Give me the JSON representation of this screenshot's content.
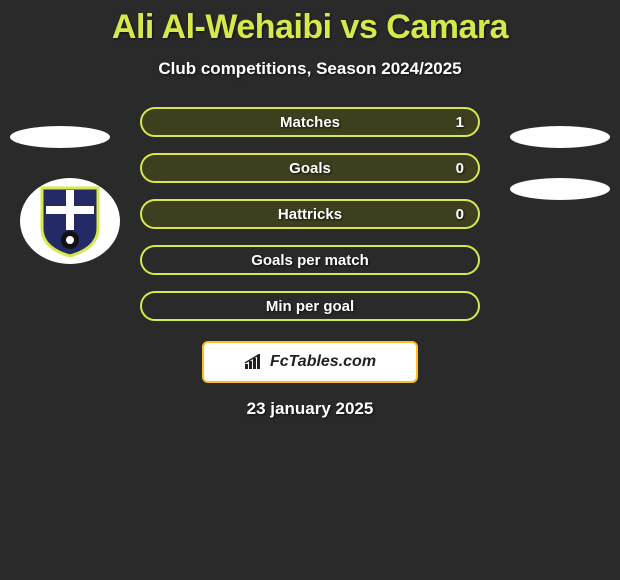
{
  "title": "Ali Al-Wehaibi vs Camara",
  "subtitle": "Club competitions, Season 2024/2025",
  "date": "23 january 2025",
  "title_color": "#d7e84a",
  "background_color": "#2a2a2a",
  "badge": {
    "text": "FcTables.com",
    "border_color": "#fbbf24",
    "bg_color": "#ffffff",
    "text_color": "#222222"
  },
  "rows": [
    {
      "label": "Matches",
      "value_right": "1",
      "border_color": "#d7e84a",
      "bg_color": "#3d3f1e"
    },
    {
      "label": "Goals",
      "value_right": "0",
      "border_color": "#d7e84a",
      "bg_color": "#3d3f1e"
    },
    {
      "label": "Hattricks",
      "value_right": "0",
      "border_color": "#d7e84a",
      "bg_color": "#3d3f1e"
    },
    {
      "label": "Goals per match",
      "value_right": "",
      "border_color": "#d7e84a",
      "bg_color": "transparent"
    },
    {
      "label": "Min per goal",
      "value_right": "",
      "border_color": "#d7e84a",
      "bg_color": "transparent"
    }
  ],
  "crest": {
    "shield_fill": "#232a66",
    "shield_stroke": "#d7e84a",
    "cross_color": "#ffffff",
    "ball_fill": "#111111",
    "ball_spot": "#ffffff"
  }
}
